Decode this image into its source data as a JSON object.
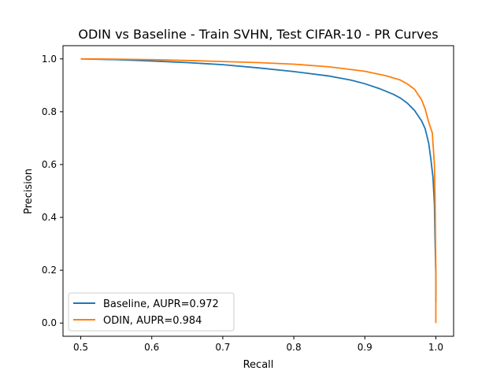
{
  "chart_data": {
    "type": "line",
    "title": "ODIN vs Baseline - Train SVHN, Test CIFAR-10 - PR Curves",
    "xlabel": "Recall",
    "ylabel": "Precision",
    "xlim": [
      0.475,
      1.025
    ],
    "ylim": [
      -0.05,
      1.05
    ],
    "xticks": [
      0.5,
      0.6,
      0.7,
      0.8,
      0.9,
      1.0
    ],
    "xtick_labels": [
      "0.5",
      "0.6",
      "0.7",
      "0.8",
      "0.9",
      "1.0"
    ],
    "yticks": [
      0.0,
      0.2,
      0.4,
      0.6,
      0.8,
      1.0
    ],
    "ytick_labels": [
      "0.0",
      "0.2",
      "0.4",
      "0.6",
      "0.8",
      "1.0"
    ],
    "grid": false,
    "legend_position": "lower-left",
    "series": [
      {
        "name": "Baseline, AUPR=0.972",
        "color": "#1f77b4",
        "x": [
          0.5,
          0.55,
          0.6,
          0.65,
          0.7,
          0.75,
          0.8,
          0.85,
          0.88,
          0.9,
          0.92,
          0.94,
          0.95,
          0.96,
          0.97,
          0.98,
          0.985,
          0.99,
          0.993,
          0.996,
          0.998,
          0.999,
          1.0,
          1.0
        ],
        "y": [
          1.0,
          0.997,
          0.992,
          0.986,
          0.978,
          0.966,
          0.952,
          0.935,
          0.92,
          0.906,
          0.888,
          0.866,
          0.852,
          0.832,
          0.805,
          0.765,
          0.735,
          0.68,
          0.62,
          0.55,
          0.45,
          0.3,
          0.18,
          0.08
        ]
      },
      {
        "name": "ODIN, AUPR=0.984",
        "color": "#ff7f0e",
        "x": [
          0.5,
          0.55,
          0.6,
          0.65,
          0.7,
          0.75,
          0.8,
          0.85,
          0.9,
          0.93,
          0.95,
          0.96,
          0.97,
          0.98,
          0.985,
          0.99,
          0.995,
          0.998,
          0.999,
          1.0,
          1.0
        ],
        "y": [
          1.0,
          0.999,
          0.997,
          0.994,
          0.99,
          0.986,
          0.98,
          0.97,
          0.953,
          0.936,
          0.92,
          0.905,
          0.885,
          0.845,
          0.81,
          0.76,
          0.72,
          0.6,
          0.45,
          0.2,
          0.0
        ]
      }
    ]
  }
}
